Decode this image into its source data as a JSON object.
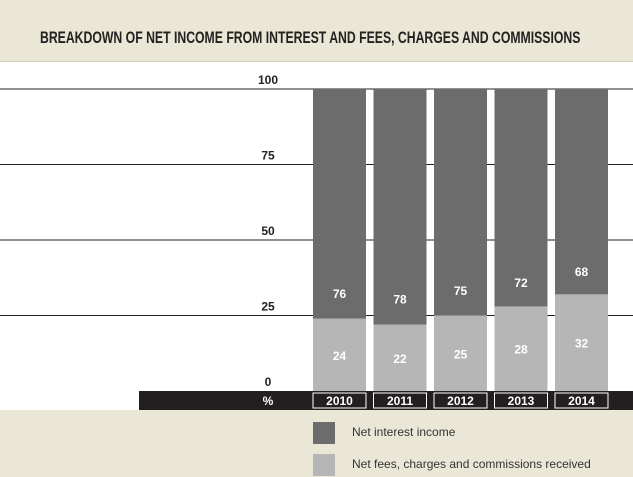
{
  "chart_data": {
    "type": "bar",
    "stacked": true,
    "title": "BREAKDOWN OF NET INCOME FROM INTEREST AND FEES, CHARGES AND COMMISSIONS",
    "ylabel": "%",
    "ylim": [
      0,
      100
    ],
    "yticks": [
      "0",
      "25",
      "50",
      "75",
      "100"
    ],
    "categories": [
      "2010",
      "2011",
      "2012",
      "2013",
      "2014"
    ],
    "series": [
      {
        "name": "Net fees, charges and commissions received",
        "values": [
          24,
          22,
          25,
          28,
          32
        ],
        "color": "#b7b6b6"
      },
      {
        "name": "Net interest income",
        "values": [
          76,
          78,
          75,
          72,
          68
        ],
        "color": "#6b6c6b"
      }
    ],
    "grid": true,
    "legend_position": "bottom"
  },
  "colors": {
    "header_background": "#ebe7d6",
    "axis_bar": "#231f20",
    "gridline": "#231f20"
  }
}
